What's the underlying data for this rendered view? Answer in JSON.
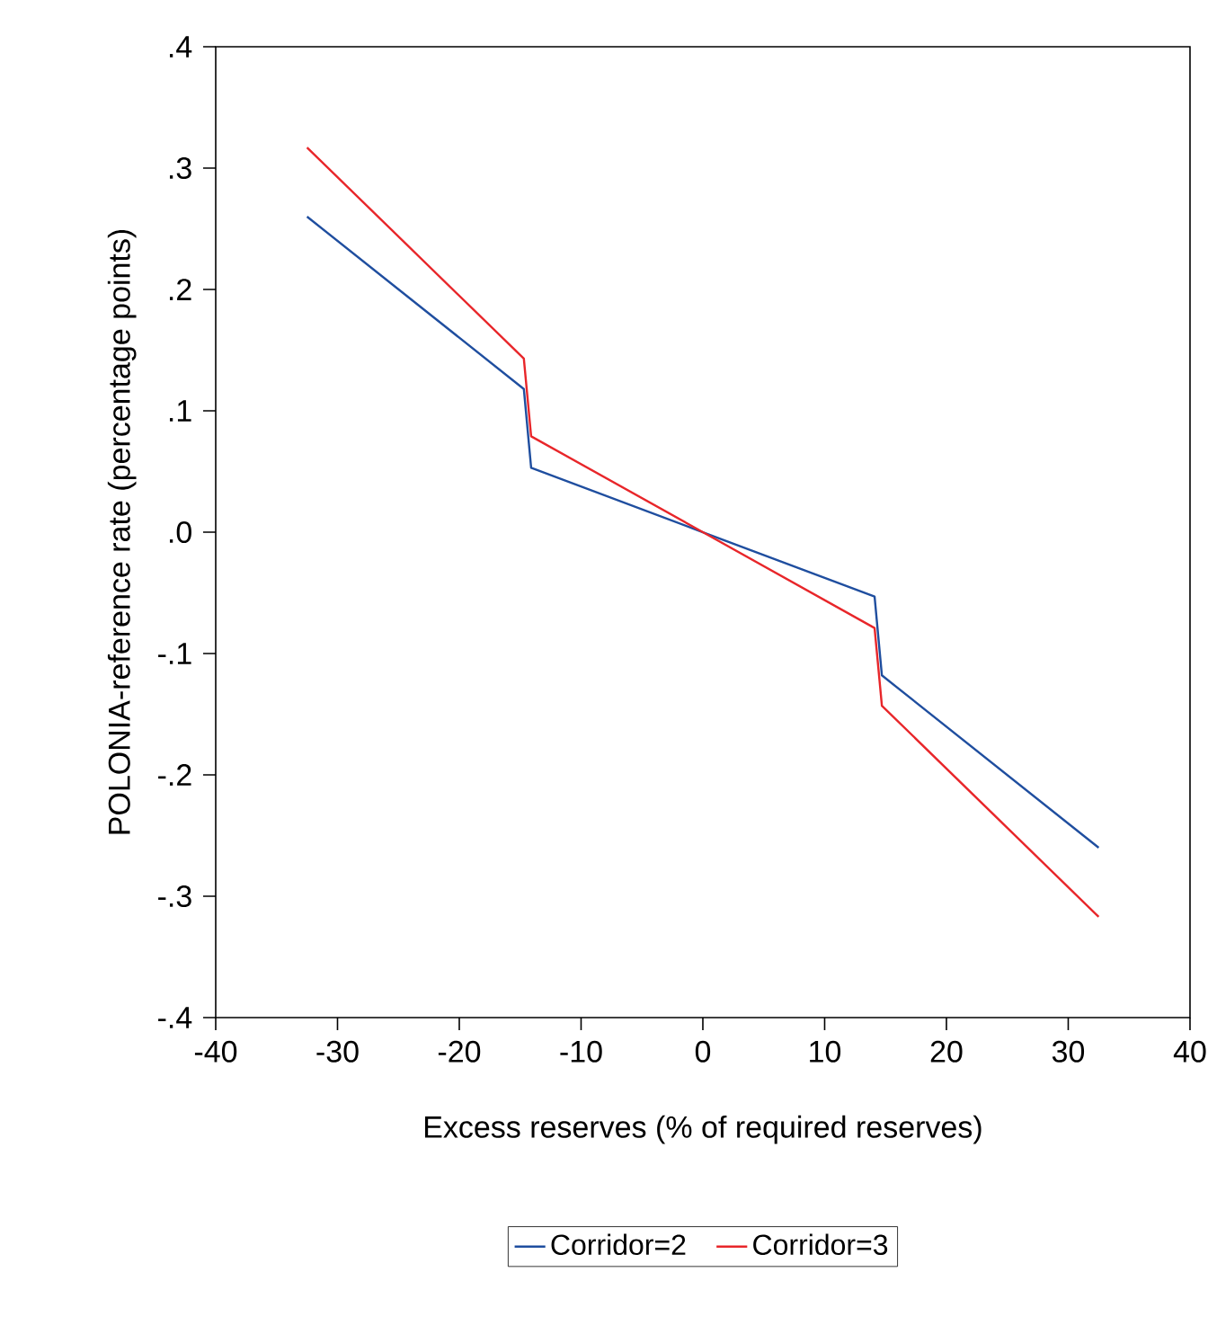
{
  "chart_data": {
    "type": "line",
    "xlabel": "Excess reserves (% of required reserves)",
    "ylabel": "POLONIA-reference rate (percentage points)",
    "xlim": [
      -40,
      40
    ],
    "xticks": [
      -40,
      -30,
      -20,
      -10,
      0,
      10,
      20,
      30,
      40
    ],
    "ylim": [
      -0.4,
      0.4
    ],
    "yticks": [
      {
        "value": -0.4,
        "label": "-.4"
      },
      {
        "value": -0.3,
        "label": "-.3"
      },
      {
        "value": -0.2,
        "label": "-.2"
      },
      {
        "value": -0.1,
        "label": "-.1"
      },
      {
        "value": 0,
        "label": ".0"
      },
      {
        "value": 0.1,
        "label": ".1"
      },
      {
        "value": 0.2,
        "label": ".2"
      },
      {
        "value": 0.3,
        "label": ".3"
      },
      {
        "value": 0.4,
        "label": ".4"
      }
    ],
    "x": [
      -32.5,
      -14.7,
      -14.1,
      0,
      14.1,
      14.7,
      32.5
    ],
    "series": [
      {
        "name": "Corridor=2",
        "color": "#1f4e9f",
        "values": [
          0.26,
          0.118,
          0.053,
          0,
          -0.053,
          -0.118,
          -0.26
        ]
      },
      {
        "name": "Corridor=3",
        "color": "#e8262a",
        "values": [
          0.317,
          0.143,
          0.079,
          0,
          -0.079,
          -0.143,
          -0.317
        ]
      }
    ],
    "grid": false,
    "legend": "bottom",
    "marker": "none",
    "line_style": "solid"
  }
}
